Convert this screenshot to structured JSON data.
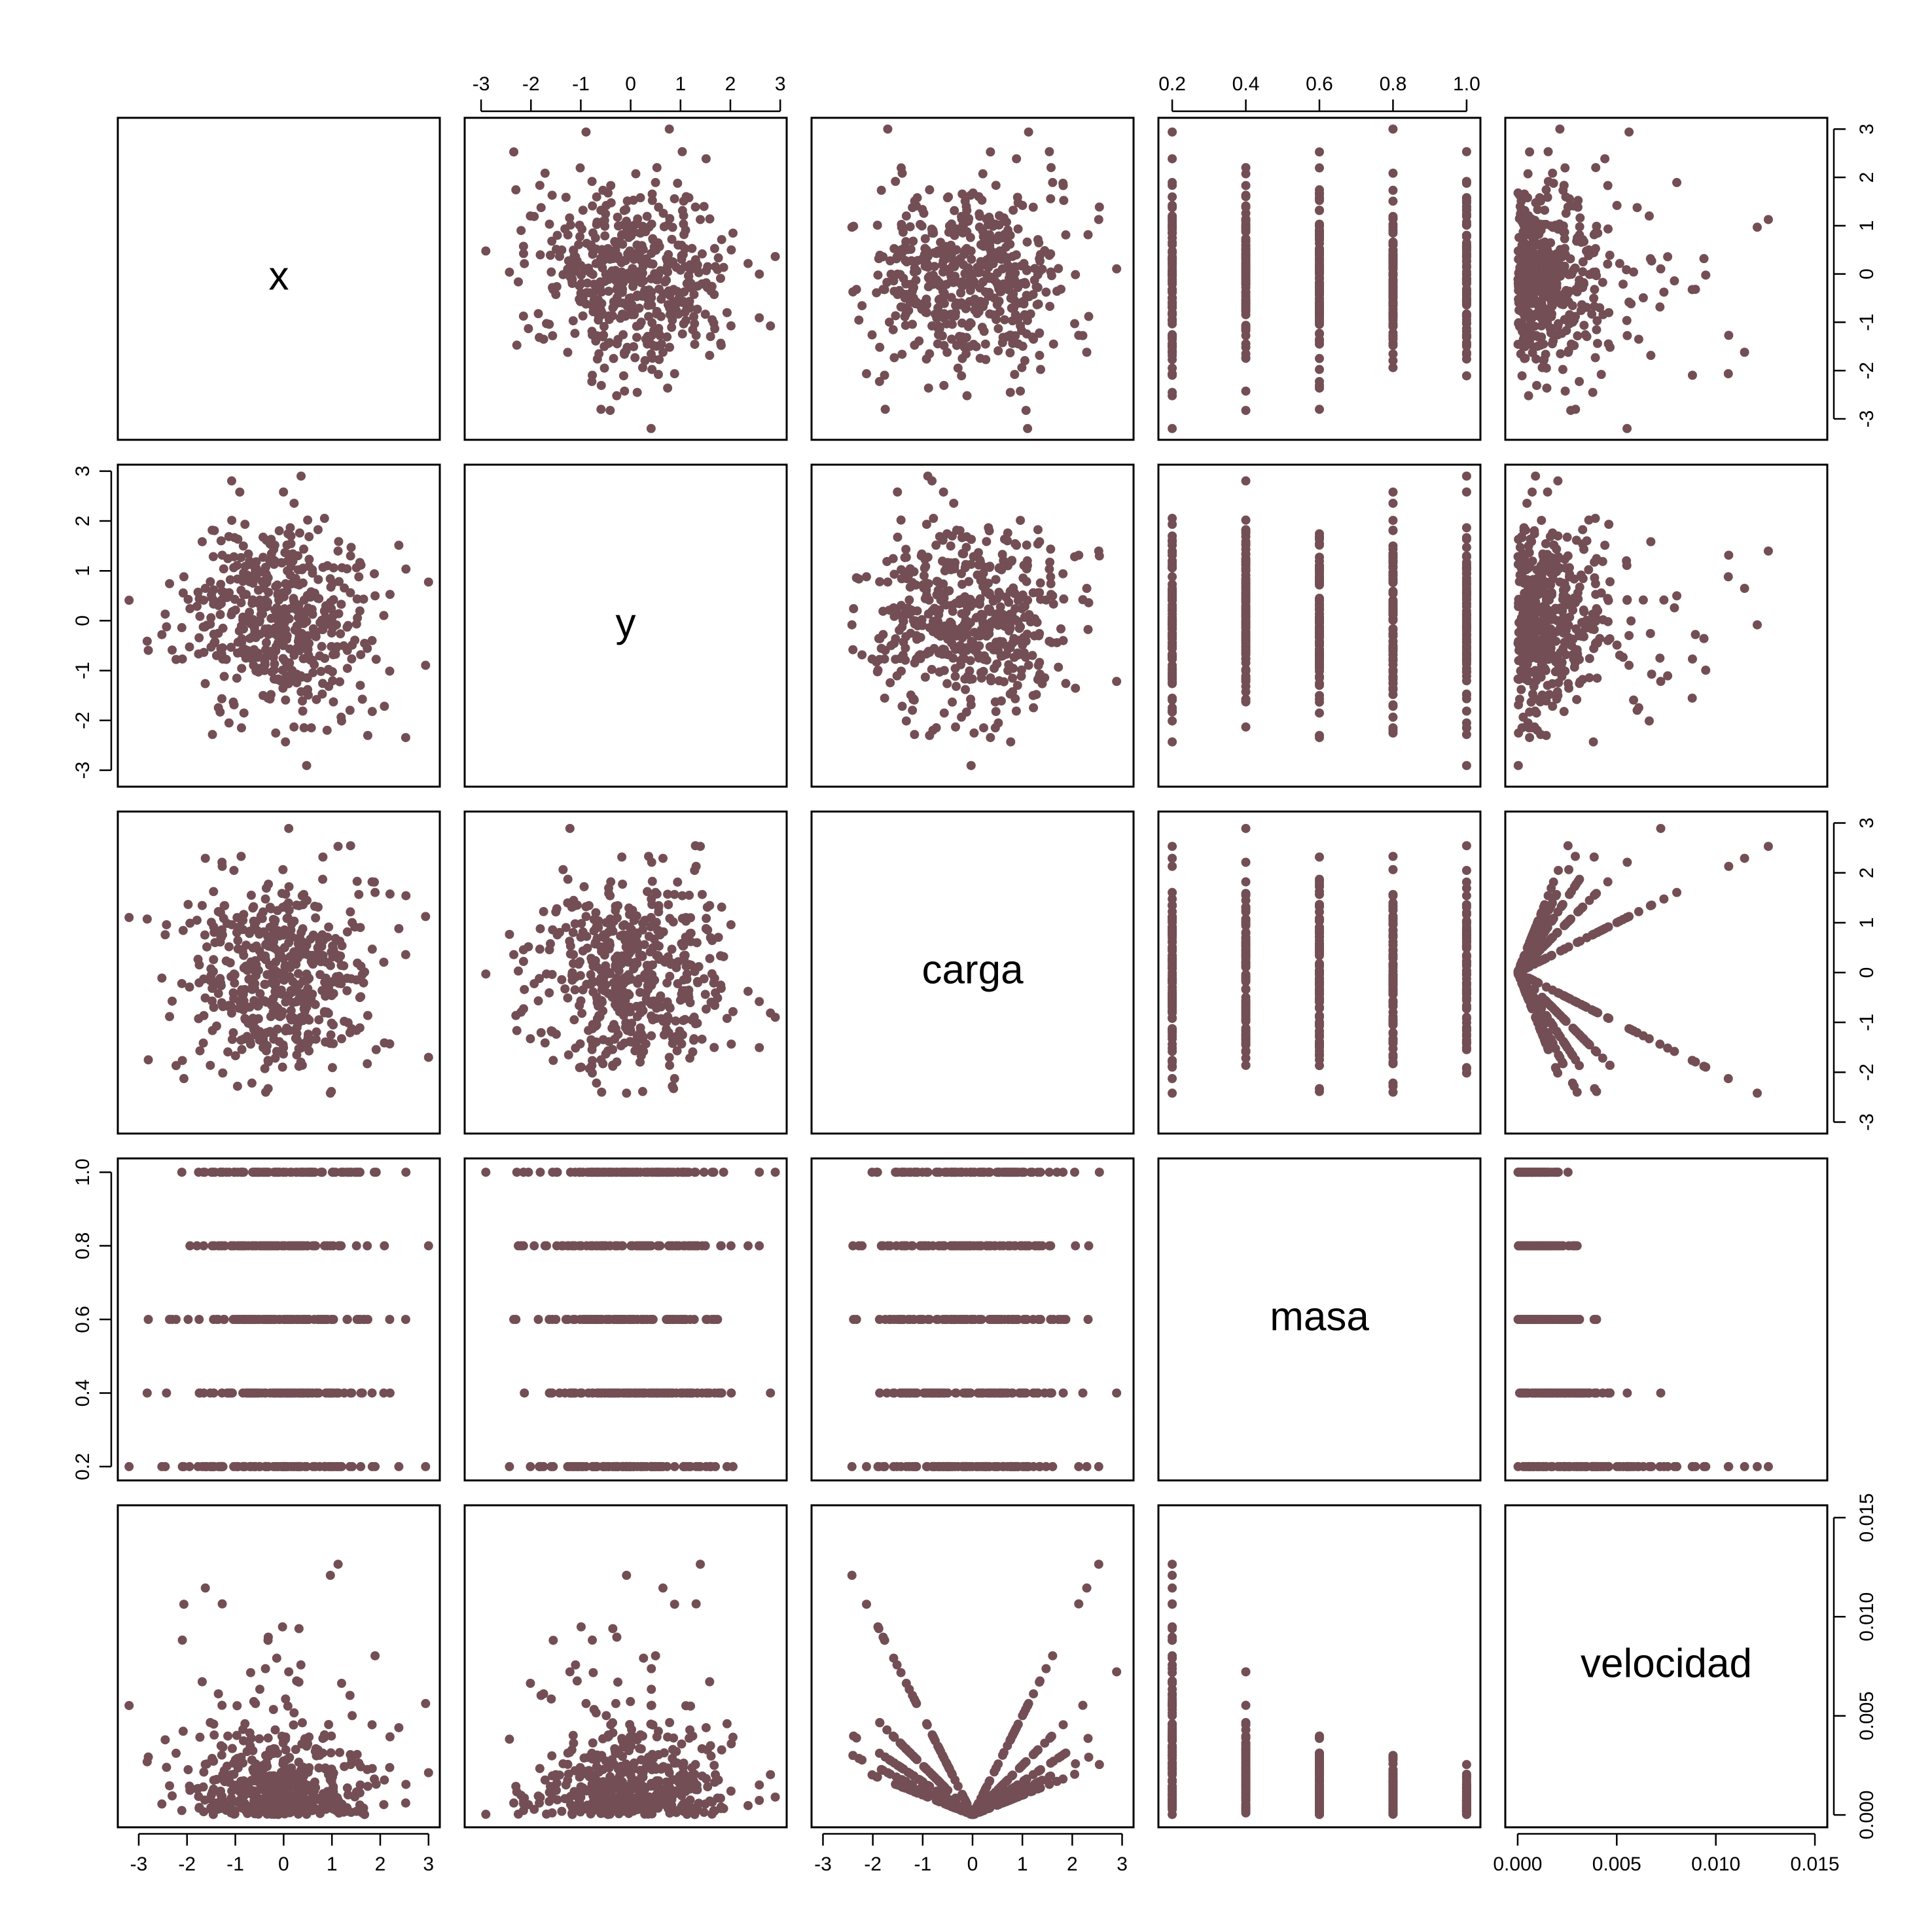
{
  "chart_data": {
    "type": "scatter",
    "subtype": "pairs-matrix",
    "variables": [
      "x",
      "y",
      "carga",
      "masa",
      "velocidad"
    ],
    "point_color": "#734e55",
    "axes": {
      "x": {
        "range": [
          -3.3,
          3.1
        ],
        "ticks": [
          -3,
          -2,
          -1,
          0,
          1,
          2,
          3
        ],
        "tick_labels": [
          "-3",
          "-2",
          "-1",
          "0",
          "1",
          "2",
          "3"
        ]
      },
      "y": {
        "range": [
          -3.2,
          3.0
        ],
        "ticks": [
          -3,
          -2,
          -1,
          0,
          1,
          2,
          3
        ],
        "tick_labels": [
          "-3",
          "-2",
          "-1",
          "0",
          "1",
          "2",
          "3"
        ]
      },
      "carga": {
        "range": [
          -3.1,
          3.1
        ],
        "ticks": [
          -3,
          -2,
          -1,
          0,
          1,
          2,
          3
        ],
        "tick_labels": [
          "-3",
          "-2",
          "-1",
          "0",
          "1",
          "2",
          "3"
        ]
      },
      "masa": {
        "range": [
          0.18,
          1.02
        ],
        "ticks": [
          0.2,
          0.4,
          0.6,
          0.8,
          1.0
        ],
        "tick_labels": [
          "0.2",
          "0.4",
          "0.6",
          "0.8",
          "1.0"
        ]
      },
      "velocidad": {
        "range": [
          -0.0003,
          0.0153
        ],
        "ticks": [
          0.0,
          0.005,
          0.01,
          0.015
        ],
        "tick_labels": [
          "0.000",
          "0.005",
          "0.010",
          "0.015"
        ]
      }
    },
    "axis_positions": {
      "bottom": [
        "x",
        "carga",
        "velocidad"
      ],
      "top": [
        "y",
        "masa"
      ],
      "left": [
        "y",
        "masa"
      ],
      "right": [
        "x",
        "carga",
        "velocidad"
      ]
    },
    "masa_levels": [
      0.2,
      0.4,
      0.6,
      0.8,
      1.0
    ],
    "n_points": 500,
    "velocidad_relation": "velocidad = |carga| / masa * 0.001",
    "points": [],
    "grid": false,
    "legend": "none"
  }
}
